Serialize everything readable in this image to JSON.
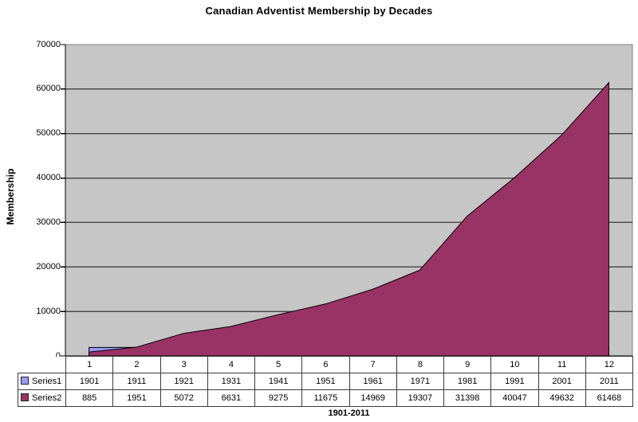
{
  "chart_data": {
    "type": "area",
    "title": "Canadian Adventist Membership by Decades",
    "xlabel": "1901-2011",
    "ylabel": "Membership",
    "categories": [
      "1",
      "2",
      "3",
      "4",
      "5",
      "6",
      "7",
      "8",
      "9",
      "10",
      "11",
      "12"
    ],
    "series": [
      {
        "name": "Series1",
        "values": [
          1901,
          1911,
          1921,
          1931,
          1941,
          1951,
          1961,
          1971,
          1981,
          1991,
          2001,
          2011
        ],
        "color": "#9999FF"
      },
      {
        "name": "Series2",
        "values": [
          885,
          1951,
          5072,
          6631,
          9275,
          11675,
          14969,
          19307,
          31398,
          40047,
          49632,
          61468
        ],
        "color": "#993366"
      }
    ],
    "ylim": [
      0,
      70000
    ],
    "yticks": [
      0,
      10000,
      20000,
      30000,
      40000,
      50000,
      60000,
      70000
    ],
    "grid": true,
    "legend_position": "data-table-left",
    "colors": {
      "plot_bg": "#C6C6C6",
      "plot_border": "#808080",
      "gridline": "#4d4d4d",
      "axis": "#000000",
      "series_outline": "#000000",
      "table_border": "#3a3a3a"
    }
  }
}
